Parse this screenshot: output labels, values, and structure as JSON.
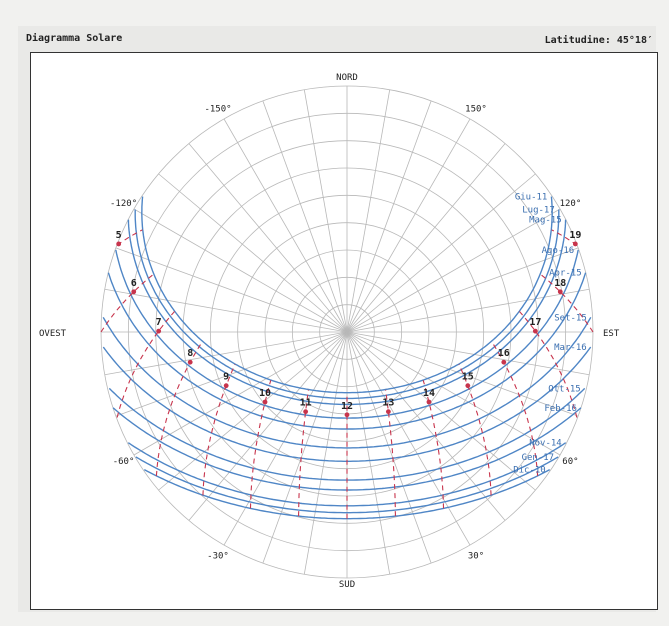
{
  "header": {
    "title": "Diagramma Solare",
    "latitude_label": "Latitudine: 45°18′"
  },
  "chart_data": {
    "type": "sun-path-polar",
    "directions": {
      "north": "NORD",
      "south": "SUD",
      "east": "EST",
      "west": "OVEST"
    },
    "azimuth_labels": [
      {
        "text": "-150°",
        "az": -150
      },
      {
        "text": "150°",
        "az": 150
      },
      {
        "text": "-120°",
        "az": -120
      },
      {
        "text": "120°",
        "az": 120
      },
      {
        "text": "-60°",
        "az": -60
      },
      {
        "text": "60°",
        "az": 60
      },
      {
        "text": "-30°",
        "az": -30
      },
      {
        "text": "30°",
        "az": 30
      }
    ],
    "altitude_grid_deg": [
      0,
      10,
      20,
      30,
      40,
      50,
      60,
      70,
      80
    ],
    "azimuth_grid_step_deg": 10,
    "latitude_deg": 45.3,
    "declination_curves": [
      {
        "label": "Giu-11",
        "declination": 23.1
      },
      {
        "label": "Lug-17",
        "declination": 21.0
      },
      {
        "label": "Mag-15",
        "declination": 18.8
      },
      {
        "label": "Ago-16",
        "declination": 13.8
      },
      {
        "label": "Apr-15",
        "declination": 9.8
      },
      {
        "label": "Set-15",
        "declination": 2.9
      },
      {
        "label": "Mar-16",
        "declination": -2.0
      },
      {
        "label": "Ott-15",
        "declination": -8.9
      },
      {
        "label": "Feb-16",
        "declination": -12.5
      },
      {
        "label": "Nov-14",
        "declination": -18.3
      },
      {
        "label": "Gen-17",
        "declination": -20.8
      },
      {
        "label": "Dic-10",
        "declination": -23.0
      }
    ],
    "hours": [
      5,
      6,
      7,
      8,
      9,
      10,
      11,
      12,
      13,
      14,
      15,
      16,
      17,
      18,
      19
    ],
    "hour_label_declination": 15,
    "colors": {
      "grid": "#b8b8b8",
      "sun_path": "#4f86c6",
      "hour_line": "#c8344c",
      "label": "#3b6fb0",
      "text": "#222222"
    }
  }
}
